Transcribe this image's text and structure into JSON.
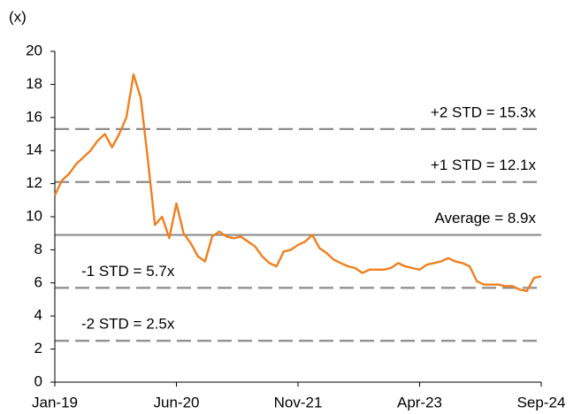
{
  "chart_data": {
    "type": "line",
    "y_label": "(x)",
    "categories": [
      "Jan-19",
      null,
      null,
      null,
      null,
      null,
      null,
      null,
      null,
      null,
      null,
      null,
      null,
      null,
      null,
      null,
      null,
      "Jun-20",
      null,
      null,
      null,
      null,
      null,
      null,
      null,
      null,
      null,
      null,
      null,
      null,
      null,
      null,
      null,
      null,
      "Nov-21",
      null,
      null,
      null,
      null,
      null,
      null,
      null,
      null,
      null,
      null,
      null,
      null,
      null,
      null,
      null,
      null,
      "Apr-23",
      null,
      null,
      null,
      null,
      null,
      null,
      null,
      null,
      null,
      null,
      null,
      null,
      null,
      null,
      null,
      null,
      "Sep-24"
    ],
    "series": [
      {
        "color": "#f07f1e",
        "values": [
          11.3,
          12.2,
          12.6,
          13.2,
          13.6,
          14.0,
          14.6,
          15.0,
          14.2,
          15.0,
          16.0,
          18.6,
          17.2,
          13.5,
          9.5,
          10.0,
          8.7,
          10.8,
          9.0,
          8.4,
          7.6,
          7.3,
          8.8,
          9.1,
          8.8,
          8.7,
          8.8,
          8.5,
          8.2,
          7.6,
          7.2,
          7.0,
          7.9,
          8.0,
          8.3,
          8.5,
          8.9,
          8.1,
          7.8,
          7.4,
          7.2,
          7.0,
          6.9,
          6.6,
          6.8,
          6.8,
          6.8,
          6.9,
          7.2,
          7.0,
          6.9,
          6.8,
          7.1,
          7.2,
          7.3,
          7.5,
          7.3,
          7.2,
          7.0,
          6.1,
          5.9,
          5.9,
          5.9,
          5.8,
          5.8,
          5.6,
          5.5,
          6.3,
          6.4
        ]
      }
    ],
    "reference_lines": [
      {
        "value": 15.3,
        "label": "+2 STD = 15.3x",
        "style": "dashed"
      },
      {
        "value": 12.1,
        "label": "+1 STD = 12.1x",
        "style": "dashed"
      },
      {
        "value": 8.9,
        "label": "Average = 8.9x",
        "style": "solid"
      },
      {
        "value": 5.7,
        "label": "-1 STD = 5.7x",
        "style": "dashed"
      },
      {
        "value": 2.5,
        "label": "-2 STD = 2.5x",
        "style": "dashed"
      }
    ],
    "reference_color": "#8c8c8c",
    "ylim": [
      0,
      20
    ],
    "yticks": [
      0,
      2,
      4,
      6,
      8,
      10,
      12,
      14,
      16,
      18,
      20
    ]
  }
}
